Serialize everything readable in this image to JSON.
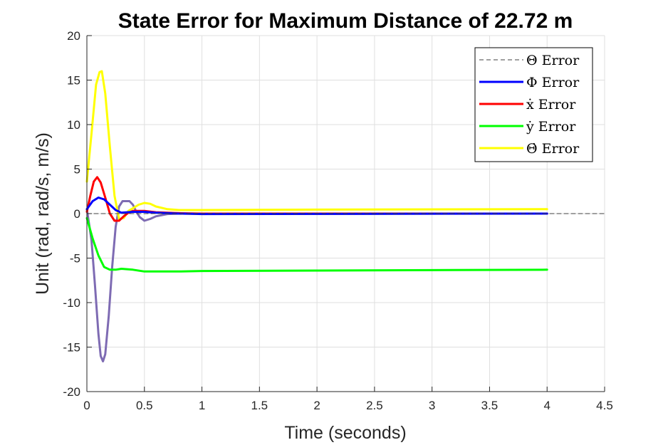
{
  "chart_data": {
    "type": "line",
    "title": "State Error for Maximum Distance of 22.72 m",
    "xlabel": "Time (seconds)",
    "ylabel": "Unit (rad, rad/s, m/s)",
    "xlim": [
      0,
      4.5
    ],
    "ylim": [
      -20,
      20
    ],
    "xticks": [
      0,
      0.5,
      1,
      1.5,
      2,
      2.5,
      3,
      3.5,
      4,
      4.5
    ],
    "xtick_labels": [
      "0",
      "0.5",
      "1",
      "1.5",
      "2",
      "2.5",
      "3",
      "3.5",
      "4",
      "4.5"
    ],
    "yticks": [
      -20,
      -15,
      -10,
      -5,
      0,
      5,
      10,
      15,
      20
    ],
    "ytick_labels": [
      "-20",
      "-15",
      "-10",
      "-5",
      "0",
      "5",
      "10",
      "15",
      "20"
    ],
    "grid": true,
    "legend_position": "top-right",
    "series": [
      {
        "name": "Θ Error",
        "legend_symbol": "Θ",
        "legend_suffix": "Error",
        "color": "#404040",
        "dashed": true,
        "x": [
          0,
          4.5
        ],
        "y": [
          0,
          0
        ]
      },
      {
        "name": "Φ Error",
        "legend_symbol": "Φ",
        "legend_suffix": "Error",
        "color": "#0000ff",
        "dashed": false,
        "x": [
          0,
          0.05,
          0.1,
          0.15,
          0.2,
          0.25,
          0.3,
          0.4,
          0.5,
          0.6,
          0.8,
          1.0,
          4.0
        ],
        "y": [
          0.5,
          1.4,
          1.8,
          1.6,
          1.0,
          0.4,
          0.1,
          0.2,
          0.2,
          0.1,
          0.0,
          -0.05,
          0.0
        ]
      },
      {
        "name": "ẋ Error",
        "legend_symbol": "ẋ",
        "legend_suffix": "Error",
        "color": "#ff0000",
        "dashed": false,
        "x": [
          0,
          0.03,
          0.06,
          0.09,
          0.12,
          0.16,
          0.2,
          0.24,
          0.28,
          0.32,
          0.36,
          0.4,
          0.5,
          0.6,
          0.8,
          1.0,
          4.0
        ],
        "y": [
          0.2,
          2.0,
          3.6,
          4.1,
          3.5,
          1.8,
          0.0,
          -0.8,
          -0.8,
          -0.3,
          0.1,
          0.3,
          0.3,
          0.15,
          0.05,
          0.0,
          0.0
        ]
      },
      {
        "name": "ẏ Error",
        "legend_symbol": "ẏ",
        "legend_suffix": "Error",
        "color": "#00ff00",
        "dashed": false,
        "x": [
          0,
          0.05,
          0.1,
          0.15,
          0.2,
          0.25,
          0.3,
          0.4,
          0.5,
          0.6,
          0.8,
          1.0,
          2.0,
          3.0,
          4.0
        ],
        "y": [
          -0.5,
          -2.8,
          -4.7,
          -6.0,
          -6.3,
          -6.3,
          -6.2,
          -6.3,
          -6.5,
          -6.5,
          -6.5,
          -6.45,
          -6.4,
          -6.35,
          -6.3
        ]
      },
      {
        "name": "Θ̇ Error",
        "legend_symbol": "Θ̇",
        "legend_suffix": "Error",
        "color": "#ffff00",
        "dashed": false,
        "x": [
          0,
          0.04,
          0.08,
          0.11,
          0.13,
          0.16,
          0.2,
          0.24,
          0.28,
          0.32,
          0.36,
          0.4,
          0.45,
          0.5,
          0.55,
          0.6,
          0.7,
          0.8,
          1.0,
          2.0,
          4.0
        ],
        "y": [
          3.6,
          9.0,
          14.5,
          15.9,
          16.0,
          13.5,
          7.5,
          2.0,
          -0.6,
          -0.5,
          0.3,
          0.6,
          1.0,
          1.2,
          1.1,
          0.8,
          0.5,
          0.4,
          0.4,
          0.45,
          0.5
        ]
      },
      {
        "name": "",
        "color": "#7e6bb3",
        "dashed": false,
        "x": [
          0,
          0.04,
          0.07,
          0.1,
          0.12,
          0.14,
          0.16,
          0.19,
          0.22,
          0.25,
          0.28,
          0.31,
          0.34,
          0.37,
          0.4,
          0.43,
          0.46,
          0.5,
          0.55,
          0.6,
          0.7,
          0.8,
          1.0,
          4.0
        ],
        "y": [
          0.5,
          -3.0,
          -8.0,
          -13.5,
          -16.0,
          -16.6,
          -15.8,
          -11.5,
          -6.0,
          -1.5,
          0.8,
          1.4,
          1.4,
          1.4,
          1.0,
          0.2,
          -0.4,
          -0.8,
          -0.6,
          -0.3,
          -0.05,
          0.0,
          0.0,
          0.0
        ]
      }
    ]
  }
}
